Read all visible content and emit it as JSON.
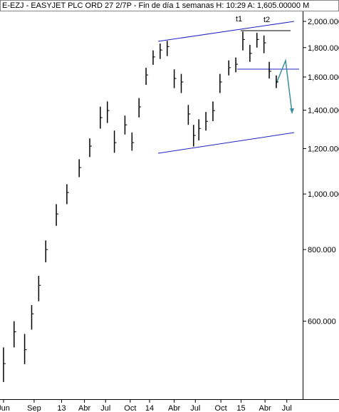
{
  "chart_data": {
    "type": "ohlc",
    "title": "E-EZJ - EASYJET PLC ORD 27 2/7P - Fin de día 1 semanas  H: 10:29  A: 1,605.00000  M",
    "annotations": [
      "t1",
      "t2"
    ],
    "color": "#000000",
    "log_scale": true,
    "x": [
      2,
      8,
      14,
      18,
      22,
      26,
      32,
      38,
      45,
      51,
      57,
      61,
      65,
      71,
      75,
      79,
      83,
      87,
      91,
      95,
      99,
      103,
      107,
      110,
      113,
      117,
      121,
      125,
      130,
      134,
      138,
      142,
      146,
      150,
      153,
      157
    ],
    "high": [
      540,
      600,
      570,
      640,
      720,
      830,
      960,
      1040,
      1150,
      1250,
      1420,
      1450,
      1290,
      1370,
      1280,
      1470,
      1660,
      1780,
      1830,
      1850,
      1650,
      1620,
      1430,
      1320,
      1350,
      1390,
      1450,
      1620,
      1710,
      1730,
      1920,
      1820,
      1910,
      1890,
      1700,
      1610
    ],
    "low": [
      470,
      540,
      505,
      580,
      650,
      760,
      880,
      960,
      1070,
      1160,
      1300,
      1330,
      1180,
      1270,
      1190,
      1360,
      1550,
      1680,
      1720,
      1740,
      1530,
      1500,
      1320,
      1210,
      1240,
      1290,
      1340,
      1500,
      1610,
      1630,
      1780,
      1700,
      1800,
      1760,
      1590,
      1530
    ],
    "close": [
      506,
      575,
      535,
      618,
      693,
      800,
      923,
      1006,
      1112,
      1212,
      1359,
      1398,
      1229,
      1320,
      1229,
      1419,
      1613,
      1734,
      1783,
      1808,
      1590,
      1568,
      1379,
      1265,
      1301,
      1339,
      1398,
      1568,
      1661,
      1684,
      1860,
      1759,
      1860,
      1835,
      1637,
      1568
    ],
    "xlim": [
      0,
      172
    ],
    "xticks": [
      {
        "value": 2,
        "label": "Jun"
      },
      {
        "value": 19.4,
        "label": "Sep"
      },
      {
        "value": 35,
        "label": "13"
      },
      {
        "value": 48,
        "label": "Abr"
      },
      {
        "value": 60,
        "label": "Jul"
      },
      {
        "value": 74,
        "label": "Oct"
      },
      {
        "value": 85,
        "label": "14"
      },
      {
        "value": 99,
        "label": "Abr"
      },
      {
        "value": 111,
        "label": "Jul"
      },
      {
        "value": 125.5,
        "label": "Oct"
      },
      {
        "value": 137,
        "label": "15"
      },
      {
        "value": 150.6,
        "label": "Abr"
      },
      {
        "value": 163,
        "label": "Jul"
      }
    ],
    "ylim": [
      445,
      2070
    ],
    "yticks": [
      {
        "value": 600,
        "label": "600.000"
      },
      {
        "value": 800,
        "label": "800.000"
      },
      {
        "value": 1000,
        "label": "1,000.000"
      },
      {
        "value": 1200,
        "label": "1,200.000"
      },
      {
        "value": 1400,
        "label": "1,400.000"
      },
      {
        "value": 1600,
        "label": "1,600.000"
      },
      {
        "value": 1800,
        "label": "1,800.000"
      },
      {
        "value": 2000,
        "label": "2,000.000"
      }
    ]
  }
}
